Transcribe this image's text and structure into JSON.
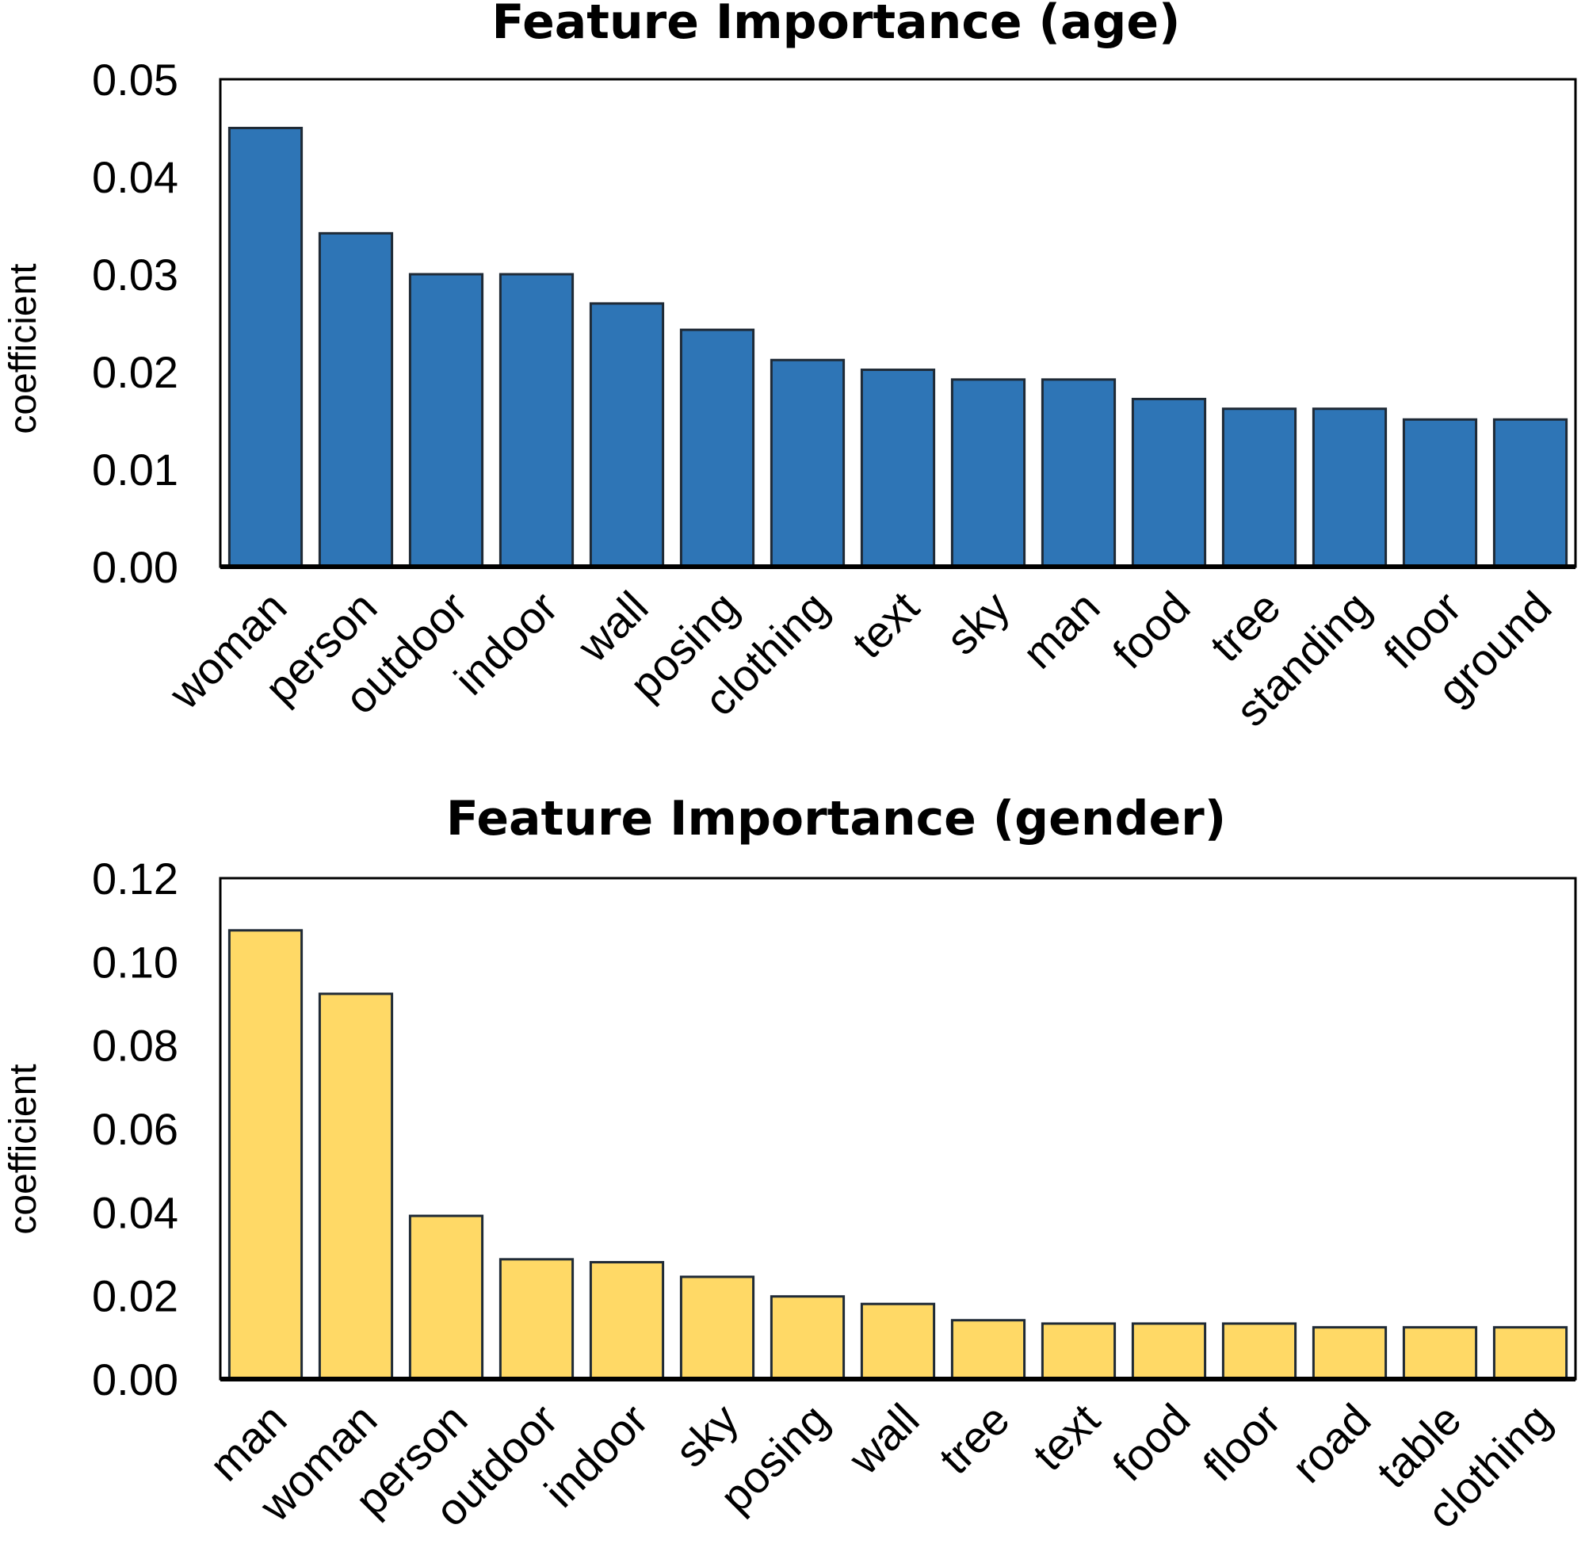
{
  "chart_data": [
    {
      "type": "bar",
      "title": "Feature Importance (age)",
      "xlabel": "",
      "ylabel": "coefficient",
      "ylim": [
        0,
        0.05
      ],
      "yticks": [
        "0.00",
        "0.01",
        "0.02",
        "0.03",
        "0.04",
        "0.05"
      ],
      "grid": false,
      "color": "#2e75b6",
      "categories": [
        "woman",
        "person",
        "outdoor",
        "indoor",
        "wall",
        "posing",
        "clothing",
        "text",
        "sky",
        "man",
        "food",
        "tree",
        "standing",
        "floor",
        "ground"
      ],
      "values": [
        0.045,
        0.0342,
        0.03,
        0.03,
        0.027,
        0.0243,
        0.0212,
        0.0202,
        0.0192,
        0.0192,
        0.0172,
        0.0162,
        0.0162,
        0.0151,
        0.0151
      ]
    },
    {
      "type": "bar",
      "title": "Feature Importance (gender)",
      "xlabel": "",
      "ylabel": "coefficient",
      "ylim": [
        0,
        0.12
      ],
      "yticks": [
        "0.00",
        "0.02",
        "0.04",
        "0.06",
        "0.08",
        "0.10",
        "0.12"
      ],
      "grid": false,
      "color": "#ffd966",
      "categories": [
        "man",
        "woman",
        "person",
        "outdoor",
        "indoor",
        "sky",
        "posing",
        "wall",
        "tree",
        "text",
        "food",
        "floor",
        "road",
        "table",
        "clothing"
      ],
      "values": [
        0.1075,
        0.0923,
        0.0391,
        0.0287,
        0.028,
        0.0245,
        0.0198,
        0.018,
        0.0141,
        0.0133,
        0.0133,
        0.0133,
        0.0124,
        0.0124,
        0.0124
      ]
    }
  ]
}
